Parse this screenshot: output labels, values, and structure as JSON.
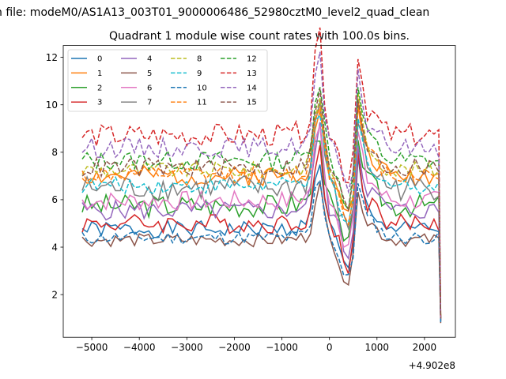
{
  "figure": {
    "suptitle": "n file: modeM0/AS1A13_003T01_9000006486_52980cztM0_level2_quad_clean"
  },
  "chart_data": {
    "type": "line",
    "title": "Quadrant 1 module wise count rates with 100.0s bins.",
    "xlabel": "",
    "ylabel": "",
    "x_offset_label": "+4.902e8",
    "xlim": [
      -5600,
      2650
    ],
    "ylim": [
      0.2,
      12.5
    ],
    "xticks": [
      -5000,
      -4000,
      -3000,
      -2000,
      -1000,
      0,
      1000,
      2000
    ],
    "xtick_labels": [
      "−5000",
      "−4000",
      "−3000",
      "−2000",
      "−1000",
      "0",
      "1000",
      "2000"
    ],
    "yticks": [
      2,
      4,
      6,
      8,
      10,
      12
    ],
    "ytick_labels": [
      "2",
      "4",
      "6",
      "8",
      "10",
      "12"
    ],
    "grid": false,
    "legend_position": "top-left",
    "legend_columns": 4,
    "x_range": [
      -5200,
      2320
    ],
    "bin_width": 100,
    "series": [
      {
        "name": "0",
        "color": "#1f77b4",
        "style": "solid",
        "base": 4.75,
        "amp": 0.25,
        "flare": 1.0,
        "post": 1.0,
        "end": 1.0
      },
      {
        "name": "1",
        "color": "#ff7f0e",
        "style": "solid",
        "base": 7.0,
        "amp": 0.3,
        "flare": 1.05,
        "post": 1.05,
        "end": 1.0
      },
      {
        "name": "2",
        "color": "#2ca02c",
        "style": "solid",
        "base": 5.75,
        "amp": 0.35,
        "flare": 1.1,
        "post": 1.1,
        "end": 0.9
      },
      {
        "name": "3",
        "color": "#d62728",
        "style": "solid",
        "base": 5.0,
        "amp": 0.3,
        "flare": 1.0,
        "post": 1.0,
        "end": 0.9
      },
      {
        "name": "4",
        "color": "#9467bd",
        "style": "solid",
        "base": 5.55,
        "amp": 0.3,
        "flare": 1.2,
        "post": 1.0,
        "end": 0.9
      },
      {
        "name": "5",
        "color": "#8c564b",
        "style": "solid",
        "base": 4.3,
        "amp": 0.2,
        "flare": 0.75,
        "post": 0.85,
        "end": 0.8
      },
      {
        "name": "6",
        "color": "#e377c2",
        "style": "solid",
        "base": 5.95,
        "amp": 0.3,
        "flare": 1.05,
        "post": 1.0,
        "end": 0.9
      },
      {
        "name": "7",
        "color": "#7f7f7f",
        "style": "solid",
        "base": 6.5,
        "amp": 0.4,
        "flare": 1.25,
        "post": 1.05,
        "end": 0.9
      },
      {
        "name": "8",
        "color": "#bcbd22",
        "style": "dashed",
        "base": 7.25,
        "amp": 0.25,
        "flare": 1.05,
        "post": 1.05,
        "end": 1.0
      },
      {
        "name": "9",
        "color": "#17becf",
        "style": "dashed",
        "base": 6.6,
        "amp": 0.25,
        "flare": 1.05,
        "post": 1.0,
        "end": 0.9
      },
      {
        "name": "10",
        "color": "#1f77b4",
        "style": "dashed",
        "base": 4.4,
        "amp": 0.2,
        "flare": 0.85,
        "post": 0.9,
        "end": 0.8
      },
      {
        "name": "11",
        "color": "#ff7f0e",
        "style": "dashed",
        "base": 7.05,
        "amp": 0.25,
        "flare": 1.05,
        "post": 1.05,
        "end": 1.0
      },
      {
        "name": "12",
        "color": "#2ca02c",
        "style": "dashed",
        "base": 7.65,
        "amp": 0.3,
        "flare": 1.2,
        "post": 1.1,
        "end": 1.0
      },
      {
        "name": "13",
        "color": "#d62728",
        "style": "dashed",
        "base": 8.7,
        "amp": 0.35,
        "flare": 1.45,
        "post": 1.25,
        "end": 1.0
      },
      {
        "name": "14",
        "color": "#9467bd",
        "style": "dashed",
        "base": 8.2,
        "amp": 0.3,
        "flare": 1.3,
        "post": 1.1,
        "end": 1.0
      },
      {
        "name": "15",
        "color": "#8c564b",
        "style": "dashed",
        "base": 7.35,
        "amp": 0.3,
        "flare": 1.05,
        "post": 1.05,
        "end": 1.0
      }
    ]
  }
}
